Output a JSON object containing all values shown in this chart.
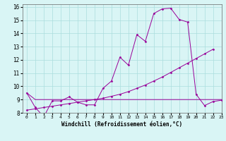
{
  "x": [
    0,
    1,
    2,
    3,
    4,
    5,
    6,
    7,
    8,
    9,
    10,
    11,
    12,
    13,
    14,
    15,
    16,
    17,
    18,
    19,
    20,
    21,
    22,
    23
  ],
  "line1": [
    9.5,
    8.4,
    7.7,
    8.9,
    8.9,
    9.2,
    8.8,
    8.6,
    8.6,
    9.85,
    10.4,
    12.2,
    11.6,
    13.9,
    13.4,
    15.5,
    15.85,
    15.9,
    15.05,
    14.85,
    9.4,
    8.55,
    8.85,
    8.95
  ],
  "line2": [
    8.2,
    8.3,
    8.4,
    8.5,
    8.6,
    8.7,
    8.8,
    8.9,
    9.0,
    9.1,
    9.25,
    9.4,
    9.6,
    9.85,
    10.1,
    10.4,
    10.7,
    11.05,
    11.4,
    11.75,
    12.1,
    12.45,
    12.8,
    9.0
  ],
  "line3": [
    9.5,
    9.0,
    9.0,
    9.0,
    9.0,
    9.0,
    9.0,
    9.0,
    9.0,
    9.0,
    9.0,
    9.0,
    9.0,
    9.0,
    9.0,
    9.0,
    9.0,
    9.0,
    9.0,
    9.0,
    9.0,
    9.0,
    9.0,
    9.0
  ],
  "line_color": "#990099",
  "bg_color": "#d9f5f5",
  "grid_color": "#aadddd",
  "xlabel": "Windchill (Refroidissement éolien,°C)",
  "ylim": [
    8,
    16.2
  ],
  "xlim": [
    -0.5,
    23
  ],
  "yticks": [
    8,
    9,
    10,
    11,
    12,
    13,
    14,
    15,
    16
  ],
  "xticks": [
    0,
    1,
    2,
    3,
    4,
    5,
    6,
    7,
    8,
    9,
    10,
    11,
    12,
    13,
    14,
    15,
    16,
    17,
    18,
    19,
    20,
    21,
    22,
    23
  ]
}
